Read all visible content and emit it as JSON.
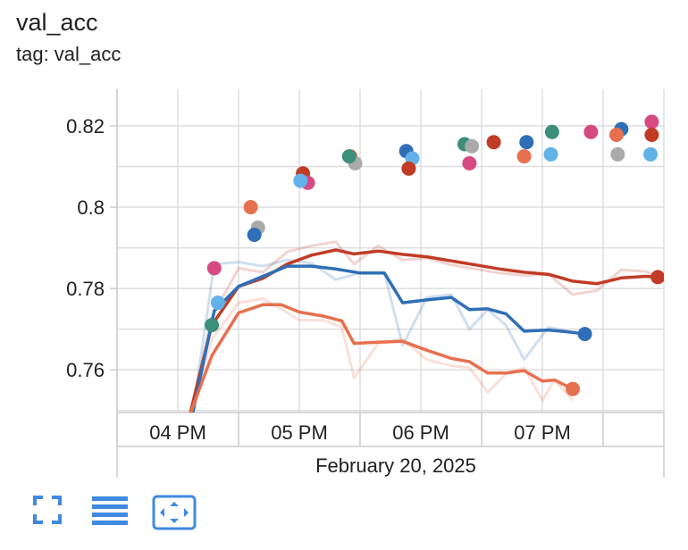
{
  "card": {
    "title": "val_acc",
    "tag_line": "tag: val_acc"
  },
  "toolbar": {
    "buttons": [
      {
        "icon": "fullscreen-icon"
      },
      {
        "icon": "toggle-log-list-icon"
      },
      {
        "icon": "fit-domain-icon"
      }
    ],
    "accent": "#3f8ae0"
  },
  "chart_data": {
    "type": "line",
    "title": "val_acc",
    "xlabel": "February 20, 2025",
    "ylabel": "",
    "x_ticks": [
      "04 PM",
      "05 PM",
      "06 PM",
      "07 PM"
    ],
    "x_tick_hours": [
      16,
      17,
      18,
      19
    ],
    "xlim_hours": [
      15.5,
      20.0
    ],
    "ylim": [
      0.7495,
      0.829
    ],
    "y_ticks": [
      0.76,
      0.78,
      0.8,
      0.82
    ],
    "y_tick_labels": [
      "0.76",
      "0.78",
      "0.8",
      "0.82"
    ],
    "grid": true,
    "series": [
      {
        "color": "#c13b25",
        "smoothed": [
          [
            16.1,
            0.749
          ],
          [
            16.28,
            0.771
          ],
          [
            16.5,
            0.7805
          ],
          [
            16.7,
            0.7825
          ],
          [
            16.9,
            0.786
          ],
          [
            17.1,
            0.7882
          ],
          [
            17.3,
            0.7895
          ],
          [
            17.45,
            0.7885
          ],
          [
            17.65,
            0.7892
          ],
          [
            17.85,
            0.7884
          ],
          [
            18.05,
            0.7878
          ],
          [
            18.25,
            0.7868
          ],
          [
            18.45,
            0.7858
          ],
          [
            18.65,
            0.7848
          ],
          [
            18.85,
            0.784
          ],
          [
            19.05,
            0.7835
          ],
          [
            19.25,
            0.7818
          ],
          [
            19.45,
            0.7812
          ],
          [
            19.65,
            0.7826
          ],
          [
            19.85,
            0.783
          ],
          [
            19.95,
            0.7828
          ]
        ],
        "raw": [
          [
            16.1,
            0.749
          ],
          [
            16.28,
            0.773
          ],
          [
            16.5,
            0.785
          ],
          [
            16.7,
            0.784
          ],
          [
            16.9,
            0.789
          ],
          [
            17.1,
            0.7905
          ],
          [
            17.3,
            0.7915
          ],
          [
            17.45,
            0.786
          ],
          [
            17.65,
            0.7905
          ],
          [
            17.85,
            0.787
          ],
          [
            18.05,
            0.7875
          ],
          [
            18.25,
            0.7858
          ],
          [
            18.45,
            0.7848
          ],
          [
            18.65,
            0.7838
          ],
          [
            18.85,
            0.7832
          ],
          [
            19.05,
            0.7835
          ],
          [
            19.25,
            0.7785
          ],
          [
            19.45,
            0.7795
          ],
          [
            19.65,
            0.7846
          ],
          [
            19.85,
            0.7842
          ],
          [
            19.95,
            0.7827
          ]
        ]
      },
      {
        "color": "#2f6fb7",
        "smoothed": [
          [
            16.12,
            0.749
          ],
          [
            16.3,
            0.7745
          ],
          [
            16.5,
            0.7805
          ],
          [
            16.7,
            0.783
          ],
          [
            16.9,
            0.7855
          ],
          [
            17.1,
            0.7855
          ],
          [
            17.3,
            0.7848
          ],
          [
            17.5,
            0.7838
          ],
          [
            17.7,
            0.7838
          ],
          [
            17.85,
            0.7765
          ],
          [
            18.05,
            0.7772
          ],
          [
            18.25,
            0.7778
          ],
          [
            18.4,
            0.7748
          ],
          [
            18.55,
            0.775
          ],
          [
            18.7,
            0.7738
          ],
          [
            18.85,
            0.7695
          ],
          [
            19.05,
            0.7698
          ],
          [
            19.25,
            0.7692
          ],
          [
            19.35,
            0.7688
          ]
        ],
        "raw": [
          [
            16.12,
            0.749
          ],
          [
            16.3,
            0.786
          ],
          [
            16.5,
            0.7865
          ],
          [
            16.7,
            0.7855
          ],
          [
            16.9,
            0.787
          ],
          [
            17.1,
            0.7862
          ],
          [
            17.3,
            0.7822
          ],
          [
            17.5,
            0.7838
          ],
          [
            17.7,
            0.7838
          ],
          [
            17.85,
            0.766
          ],
          [
            18.05,
            0.7778
          ],
          [
            18.25,
            0.7785
          ],
          [
            18.4,
            0.77
          ],
          [
            18.55,
            0.7748
          ],
          [
            18.7,
            0.771
          ],
          [
            18.85,
            0.7625
          ],
          [
            19.05,
            0.7705
          ],
          [
            19.25,
            0.7692
          ],
          [
            19.35,
            0.7688
          ]
        ]
      },
      {
        "color": "#e7704e",
        "smoothed": [
          [
            16.1,
            0.749
          ],
          [
            16.28,
            0.7635
          ],
          [
            16.5,
            0.774
          ],
          [
            16.7,
            0.776
          ],
          [
            16.85,
            0.776
          ],
          [
            17.0,
            0.7742
          ],
          [
            17.2,
            0.7732
          ],
          [
            17.35,
            0.772
          ],
          [
            17.45,
            0.7665
          ],
          [
            17.65,
            0.7668
          ],
          [
            17.85,
            0.767
          ],
          [
            18.05,
            0.7648
          ],
          [
            18.25,
            0.7628
          ],
          [
            18.4,
            0.762
          ],
          [
            18.55,
            0.7592
          ],
          [
            18.7,
            0.7592
          ],
          [
            18.85,
            0.7598
          ],
          [
            19.0,
            0.7572
          ],
          [
            19.1,
            0.7575
          ],
          [
            19.25,
            0.7553
          ]
        ],
        "raw": [
          [
            16.1,
            0.749
          ],
          [
            16.28,
            0.7675
          ],
          [
            16.5,
            0.7765
          ],
          [
            16.7,
            0.7775
          ],
          [
            16.85,
            0.775
          ],
          [
            17.0,
            0.7722
          ],
          [
            17.2,
            0.7722
          ],
          [
            17.35,
            0.7705
          ],
          [
            17.45,
            0.758
          ],
          [
            17.65,
            0.7665
          ],
          [
            17.85,
            0.7675
          ],
          [
            18.05,
            0.7625
          ],
          [
            18.25,
            0.761
          ],
          [
            18.4,
            0.7605
          ],
          [
            18.55,
            0.7545
          ],
          [
            18.7,
            0.759
          ],
          [
            18.85,
            0.7605
          ],
          [
            19.0,
            0.7525
          ],
          [
            19.1,
            0.7575
          ],
          [
            19.25,
            0.7525
          ]
        ]
      }
    ],
    "points": [
      {
        "x": 16.28,
        "y": 0.771,
        "color": "#3b8f7a"
      },
      {
        "x": 16.3,
        "y": 0.785,
        "color": "#d64a82"
      },
      {
        "x": 16.33,
        "y": 0.7765,
        "color": "#62b1e8"
      },
      {
        "x": 16.6,
        "y": 0.8,
        "color": "#e7704e"
      },
      {
        "x": 16.66,
        "y": 0.795,
        "color": "#aaaaaa"
      },
      {
        "x": 16.63,
        "y": 0.7932,
        "color": "#2f6fb7"
      },
      {
        "x": 17.03,
        "y": 0.8083,
        "color": "#c13b25"
      },
      {
        "x": 17.07,
        "y": 0.806,
        "color": "#d64a82"
      },
      {
        "x": 17.01,
        "y": 0.8065,
        "color": "#62b1e8"
      },
      {
        "x": 17.42,
        "y": 0.8125,
        "color": "#e7704e"
      },
      {
        "x": 17.46,
        "y": 0.8108,
        "color": "#aaaaaa"
      },
      {
        "x": 17.41,
        "y": 0.8125,
        "color": "#3b8f7a"
      },
      {
        "x": 17.88,
        "y": 0.8138,
        "color": "#2f6fb7"
      },
      {
        "x": 17.93,
        "y": 0.812,
        "color": "#62b1e8"
      },
      {
        "x": 17.9,
        "y": 0.8095,
        "color": "#c13b25"
      },
      {
        "x": 18.36,
        "y": 0.8155,
        "color": "#3b8f7a"
      },
      {
        "x": 18.42,
        "y": 0.815,
        "color": "#aaaaaa"
      },
      {
        "x": 18.4,
        "y": 0.8108,
        "color": "#d64a82"
      },
      {
        "x": 18.6,
        "y": 0.816,
        "color": "#c13b25"
      },
      {
        "x": 18.85,
        "y": 0.8125,
        "color": "#e7704e"
      },
      {
        "x": 18.87,
        "y": 0.816,
        "color": "#2f6fb7"
      },
      {
        "x": 19.08,
        "y": 0.8185,
        "color": "#3b8f7a"
      },
      {
        "x": 19.07,
        "y": 0.813,
        "color": "#62b1e8"
      },
      {
        "x": 19.4,
        "y": 0.8185,
        "color": "#d64a82"
      },
      {
        "x": 19.65,
        "y": 0.8192,
        "color": "#2f6fb7"
      },
      {
        "x": 19.61,
        "y": 0.8178,
        "color": "#e7704e"
      },
      {
        "x": 19.62,
        "y": 0.813,
        "color": "#aaaaaa"
      },
      {
        "x": 19.9,
        "y": 0.821,
        "color": "#d64a82"
      },
      {
        "x": 19.9,
        "y": 0.8178,
        "color": "#c13b25"
      },
      {
        "x": 19.89,
        "y": 0.813,
        "color": "#62b1e8"
      }
    ],
    "endpoints": [
      {
        "x": 19.95,
        "y": 0.7828,
        "color": "#c13b25"
      },
      {
        "x": 19.35,
        "y": 0.7688,
        "color": "#2f6fb7"
      },
      {
        "x": 19.25,
        "y": 0.7553,
        "color": "#e7704e"
      }
    ]
  }
}
